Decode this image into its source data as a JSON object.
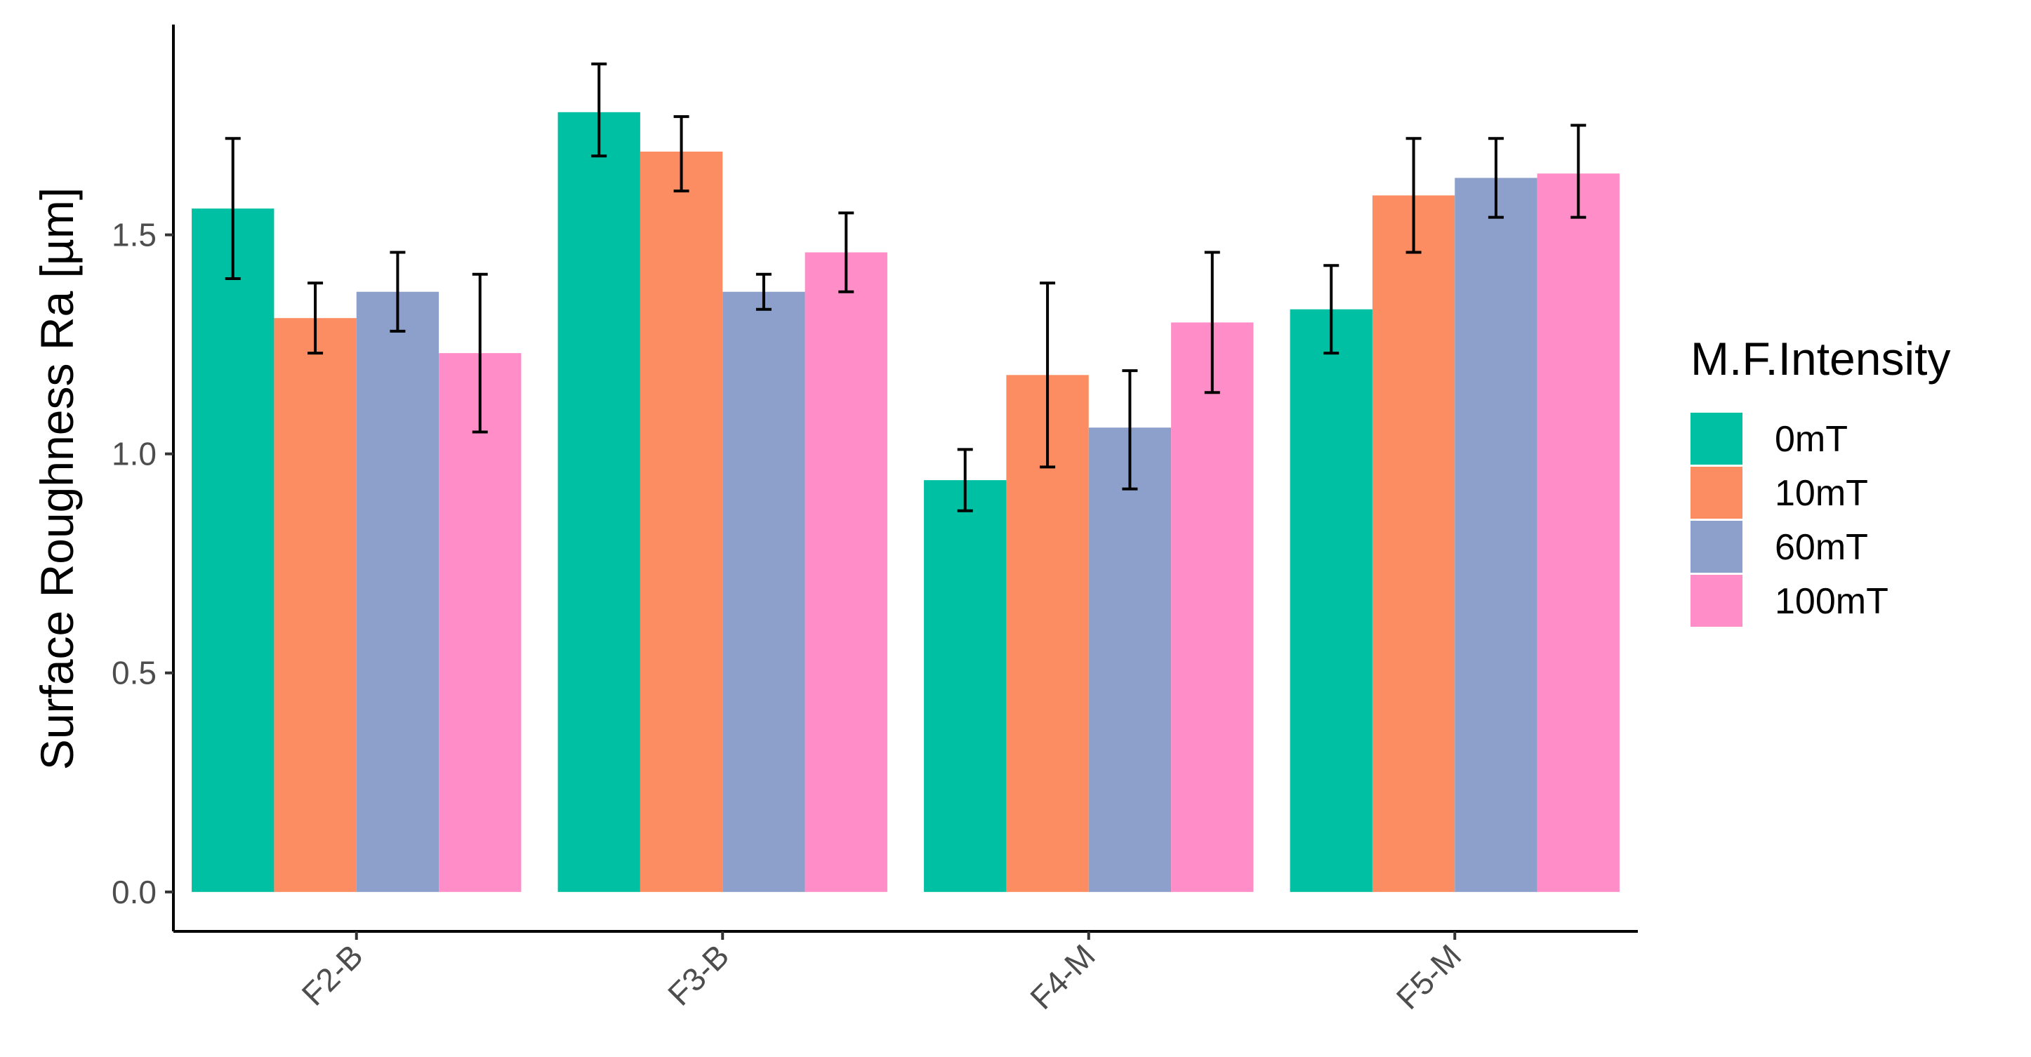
{
  "chart_data": {
    "type": "bar",
    "title": "",
    "xlabel": "",
    "ylabel": "Surface Roughness Ra [µm]",
    "ylim": [
      -0.09,
      1.98
    ],
    "yticks": [
      0.0,
      0.5,
      1.0,
      1.5
    ],
    "ytick_labels": [
      "0.0",
      "0.5",
      "1.0",
      "1.5"
    ],
    "categories": [
      "F2-B",
      "F3-B",
      "F4-M",
      "F5-M"
    ],
    "legend_title": "M.F.Intensity",
    "legend_position": "right",
    "grid": false,
    "series": [
      {
        "name": "0mT",
        "color": "#00c0a3",
        "values": [
          1.56,
          1.78,
          0.94,
          1.33
        ],
        "err_low": [
          1.4,
          1.68,
          0.87,
          1.23
        ],
        "err_high": [
          1.72,
          1.89,
          1.01,
          1.43
        ]
      },
      {
        "name": "10mT",
        "color": "#fc8d62",
        "values": [
          1.31,
          1.69,
          1.18,
          1.59
        ],
        "err_low": [
          1.23,
          1.6,
          0.97,
          1.46
        ],
        "err_high": [
          1.39,
          1.77,
          1.39,
          1.72
        ]
      },
      {
        "name": "60mT",
        "color": "#8da0cb",
        "values": [
          1.37,
          1.37,
          1.06,
          1.63
        ],
        "err_low": [
          1.28,
          1.33,
          0.92,
          1.54
        ],
        "err_high": [
          1.46,
          1.41,
          1.19,
          1.72
        ]
      },
      {
        "name": "100mT",
        "color": "#ff8ec8",
        "values": [
          1.23,
          1.46,
          1.3,
          1.64
        ],
        "err_low": [
          1.05,
          1.37,
          1.14,
          1.54
        ],
        "err_high": [
          1.41,
          1.55,
          1.46,
          1.75
        ]
      }
    ]
  }
}
